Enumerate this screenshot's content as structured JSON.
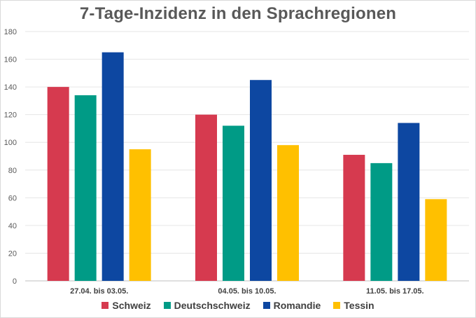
{
  "chart_data": {
    "type": "bar",
    "title": "7-Tage-Inzidenz in den Sprachregionen",
    "categories": [
      "27.04. bis 03.05.",
      "04.05. bis 10.05.",
      "11.05. bis 17.05."
    ],
    "series": [
      {
        "name": "Schweiz",
        "color": "#d63a4f",
        "values": [
          140,
          120,
          91
        ]
      },
      {
        "name": "Deutschschweiz",
        "color": "#009b86",
        "values": [
          134,
          112,
          85
        ]
      },
      {
        "name": "Romandie",
        "color": "#0d47a1",
        "values": [
          165,
          145,
          114
        ]
      },
      {
        "name": "Tessin",
        "color": "#ffc000",
        "values": [
          95,
          98,
          59
        ]
      }
    ],
    "ylim": [
      0,
      180
    ],
    "yticks": [
      0,
      20,
      40,
      60,
      80,
      100,
      120,
      140,
      160,
      180
    ],
    "grid": true,
    "legend": "bottom",
    "xlabel": "",
    "ylabel": ""
  }
}
